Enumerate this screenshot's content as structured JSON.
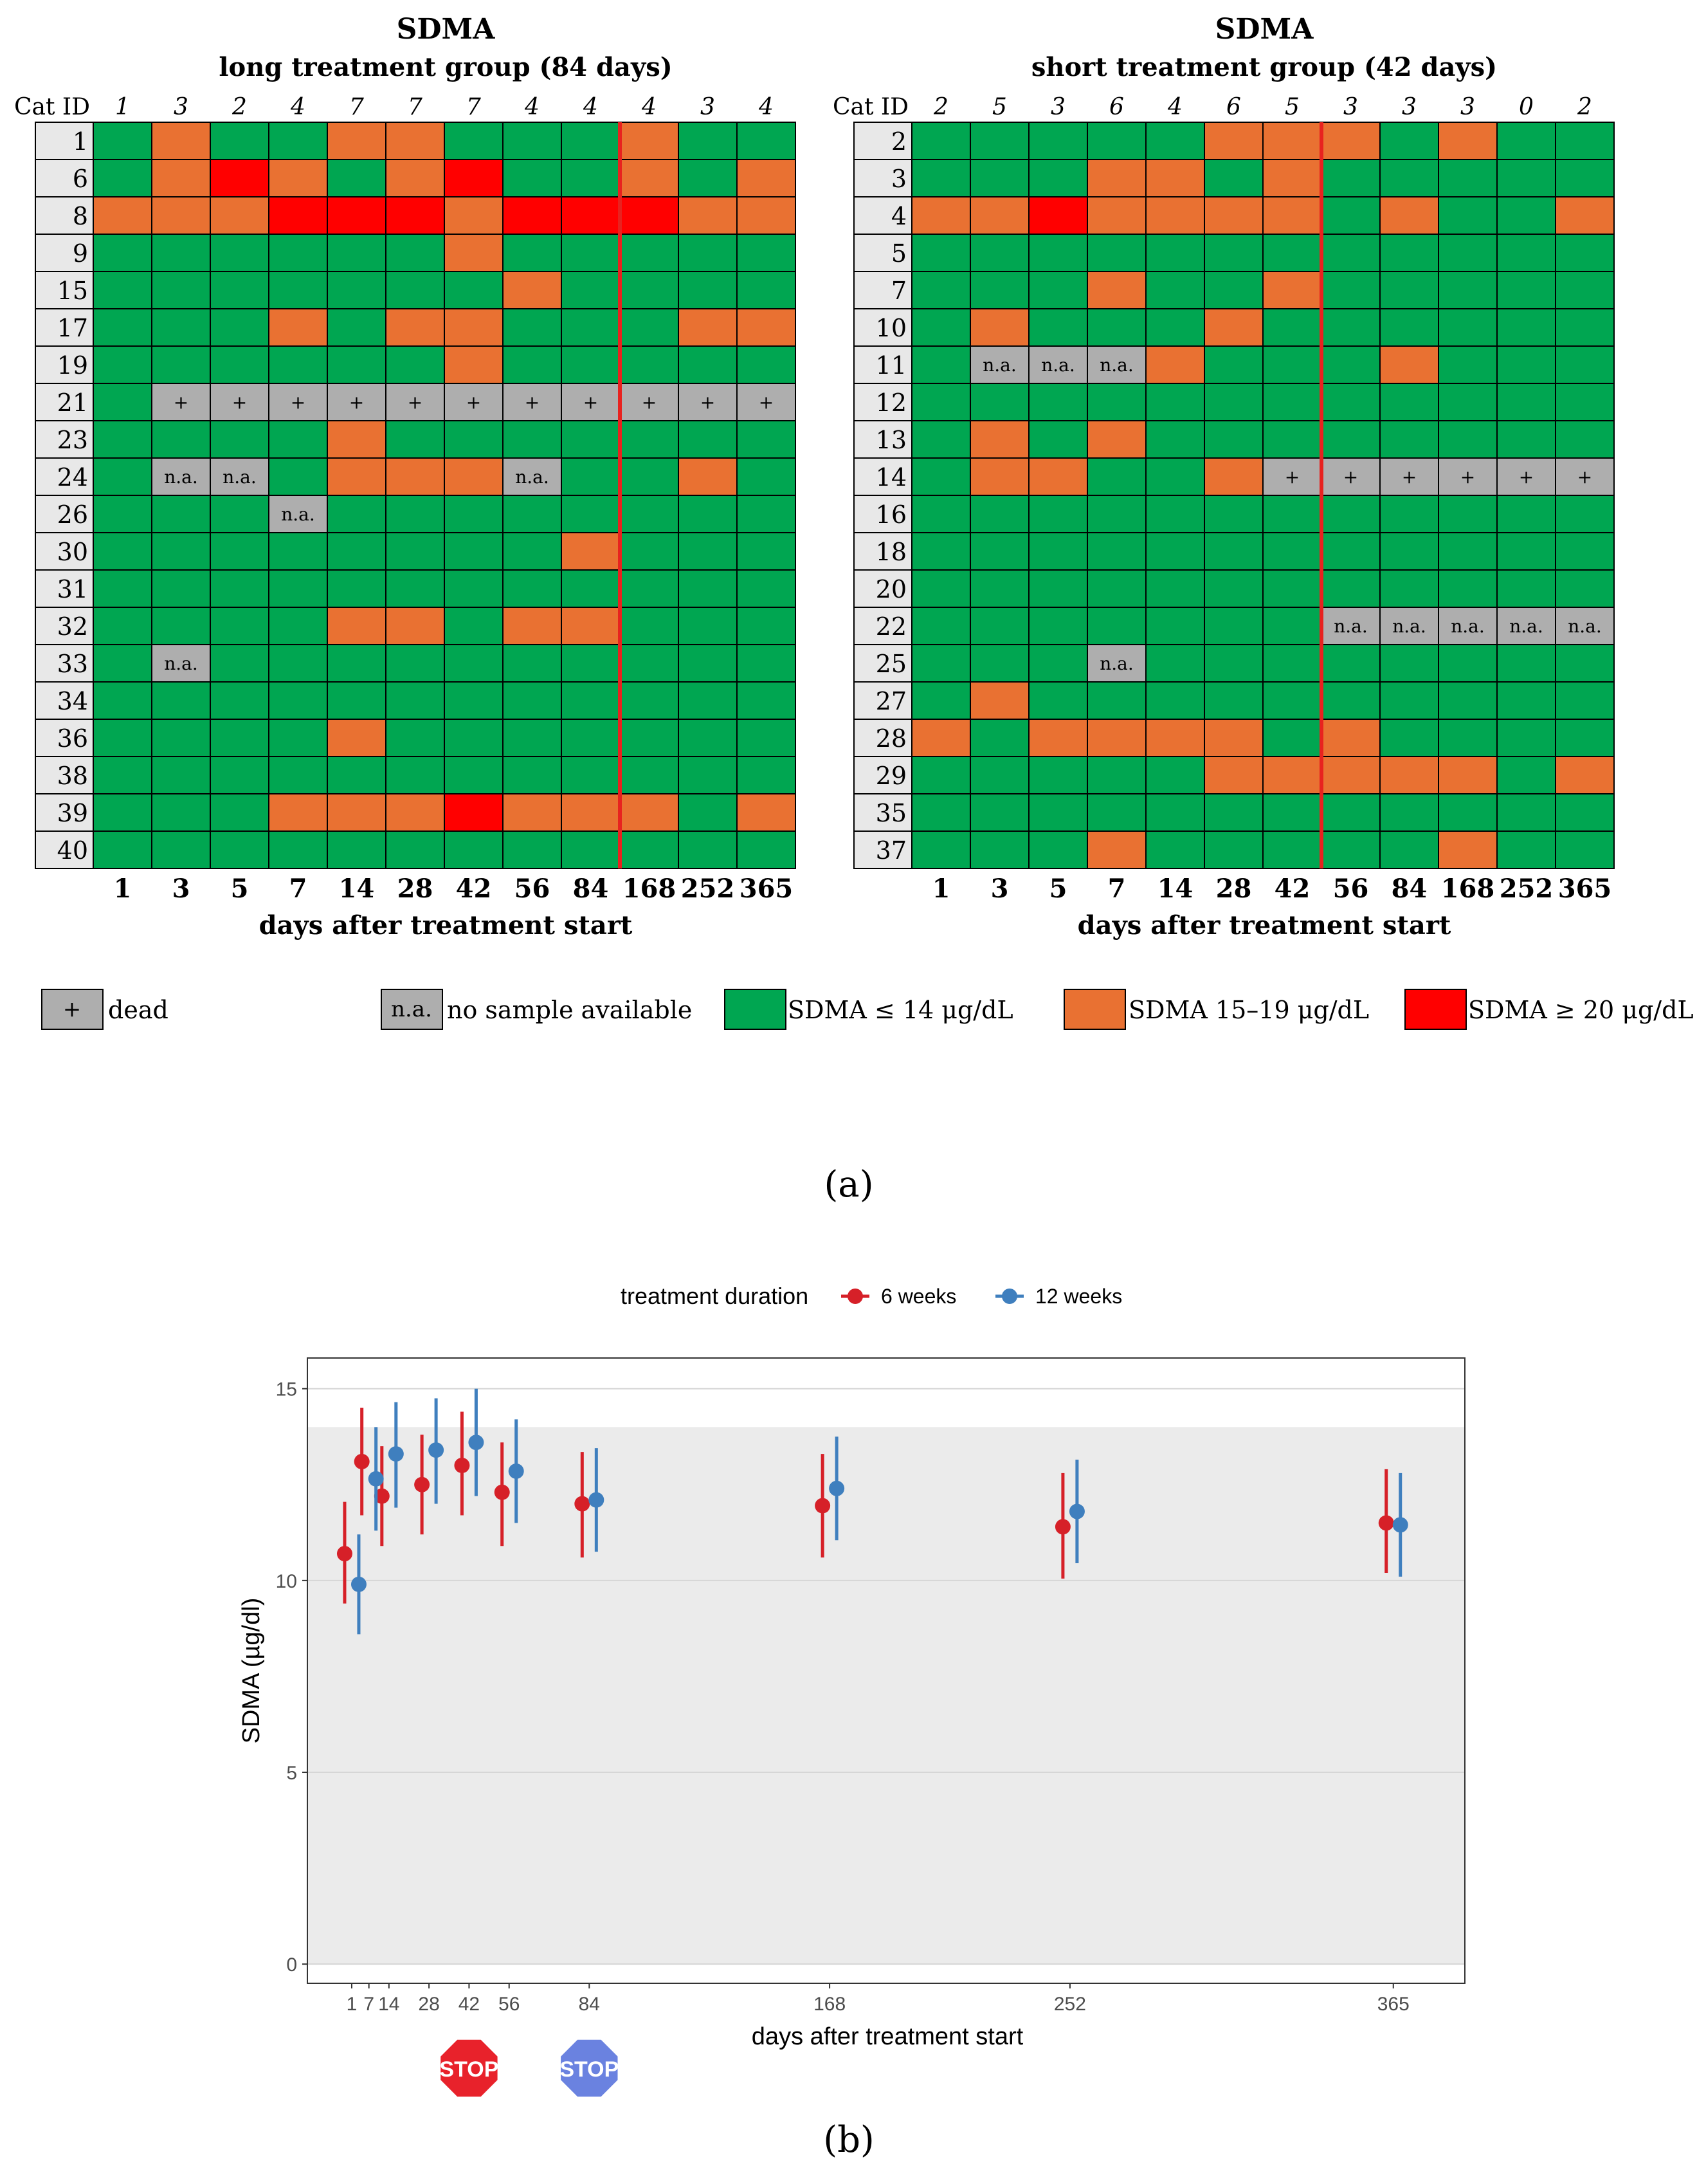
{
  "colors": {
    "green": "#00A651",
    "orange": "#E97132",
    "red": "#FF0000",
    "gray": "#AEAEAE",
    "idgray": "#E8E8E8",
    "redline": "#E8221F",
    "series6": "#D62028",
    "series12": "#3F7FBE",
    "panelbg": "#EBEBEB",
    "stopRed": "#E8222B",
    "stopBlue": "#6A82E0"
  },
  "panel_a": {
    "label": "(a)",
    "x_label": "days after treatment start",
    "cat_id_header": "Cat ID",
    "days": [
      "1",
      "3",
      "5",
      "7",
      "14",
      "28",
      "42",
      "56",
      "84",
      "168",
      "252",
      "365"
    ],
    "legend": [
      {
        "key": "dead",
        "symbol": "+",
        "text": "dead"
      },
      {
        "key": "na",
        "symbol": "n.a.",
        "text": "no sample available"
      },
      {
        "key": "G",
        "symbol": "",
        "text": "SDMA ≤ 14 μg/dL"
      },
      {
        "key": "O",
        "symbol": "",
        "text": "SDMA 15–19 μg/dL"
      },
      {
        "key": "R",
        "symbol": "",
        "text": "SDMA ≥ 20 μg/dL"
      }
    ],
    "groups": [
      {
        "title": "SDMA",
        "subtitle": "long treatment group (84 days)",
        "counts": [
          "1",
          "3",
          "2",
          "4",
          "7",
          "7",
          "7",
          "4",
          "4",
          "4",
          "3",
          "4"
        ],
        "stop_after_index": 8,
        "rows": [
          {
            "id": "1",
            "cells": [
              "G",
              "O",
              "G",
              "G",
              "O",
              "O",
              "G",
              "G",
              "G",
              "O",
              "G",
              "G"
            ]
          },
          {
            "id": "6",
            "cells": [
              "G",
              "O",
              "R",
              "O",
              "G",
              "O",
              "R",
              "G",
              "G",
              "O",
              "G",
              "O"
            ]
          },
          {
            "id": "8",
            "cells": [
              "O",
              "O",
              "O",
              "R",
              "R",
              "R",
              "O",
              "R",
              "R",
              "R",
              "O",
              "O"
            ]
          },
          {
            "id": "9",
            "cells": [
              "G",
              "G",
              "G",
              "G",
              "G",
              "G",
              "O",
              "G",
              "G",
              "G",
              "G",
              "G"
            ]
          },
          {
            "id": "15",
            "cells": [
              "G",
              "G",
              "G",
              "G",
              "G",
              "G",
              "G",
              "O",
              "G",
              "G",
              "G",
              "G"
            ]
          },
          {
            "id": "17",
            "cells": [
              "G",
              "G",
              "G",
              "O",
              "G",
              "O",
              "O",
              "G",
              "G",
              "G",
              "O",
              "O"
            ]
          },
          {
            "id": "19",
            "cells": [
              "G",
              "G",
              "G",
              "G",
              "G",
              "G",
              "O",
              "G",
              "G",
              "G",
              "G",
              "G"
            ]
          },
          {
            "id": "21",
            "cells": [
              "G",
              "+",
              "+",
              "+",
              "+",
              "+",
              "+",
              "+",
              "+",
              "+",
              "+",
              "+"
            ]
          },
          {
            "id": "23",
            "cells": [
              "G",
              "G",
              "G",
              "G",
              "O",
              "G",
              "G",
              "G",
              "G",
              "G",
              "G",
              "G"
            ]
          },
          {
            "id": "24",
            "cells": [
              "G",
              "n.a.",
              "n.a.",
              "G",
              "O",
              "O",
              "O",
              "n.a.",
              "G",
              "G",
              "O",
              "G"
            ]
          },
          {
            "id": "26",
            "cells": [
              "G",
              "G",
              "G",
              "n.a.",
              "G",
              "G",
              "G",
              "G",
              "G",
              "G",
              "G",
              "G"
            ]
          },
          {
            "id": "30",
            "cells": [
              "G",
              "G",
              "G",
              "G",
              "G",
              "G",
              "G",
              "G",
              "O",
              "G",
              "G",
              "G"
            ]
          },
          {
            "id": "31",
            "cells": [
              "G",
              "G",
              "G",
              "G",
              "G",
              "G",
              "G",
              "G",
              "G",
              "G",
              "G",
              "G"
            ]
          },
          {
            "id": "32",
            "cells": [
              "G",
              "G",
              "G",
              "G",
              "O",
              "O",
              "G",
              "O",
              "O",
              "G",
              "G",
              "G"
            ]
          },
          {
            "id": "33",
            "cells": [
              "G",
              "n.a.",
              "G",
              "G",
              "G",
              "G",
              "G",
              "G",
              "G",
              "G",
              "G",
              "G"
            ]
          },
          {
            "id": "34",
            "cells": [
              "G",
              "G",
              "G",
              "G",
              "G",
              "G",
              "G",
              "G",
              "G",
              "G",
              "G",
              "G"
            ]
          },
          {
            "id": "36",
            "cells": [
              "G",
              "G",
              "G",
              "G",
              "O",
              "G",
              "G",
              "G",
              "G",
              "G",
              "G",
              "G"
            ]
          },
          {
            "id": "38",
            "cells": [
              "G",
              "G",
              "G",
              "G",
              "G",
              "G",
              "G",
              "G",
              "G",
              "G",
              "G",
              "G"
            ]
          },
          {
            "id": "39",
            "cells": [
              "G",
              "G",
              "G",
              "O",
              "O",
              "O",
              "R",
              "O",
              "O",
              "O",
              "G",
              "O"
            ]
          },
          {
            "id": "40",
            "cells": [
              "G",
              "G",
              "G",
              "G",
              "G",
              "G",
              "G",
              "G",
              "G",
              "G",
              "G",
              "G"
            ]
          }
        ]
      },
      {
        "title": "SDMA",
        "subtitle": "short treatment group (42 days)",
        "counts": [
          "2",
          "5",
          "3",
          "6",
          "4",
          "6",
          "5",
          "3",
          "3",
          "3",
          "0",
          "2"
        ],
        "stop_after_index": 6,
        "rows": [
          {
            "id": "2",
            "cells": [
              "G",
              "G",
              "G",
              "G",
              "G",
              "O",
              "O",
              "O",
              "G",
              "O",
              "G",
              "G"
            ]
          },
          {
            "id": "3",
            "cells": [
              "G",
              "G",
              "G",
              "O",
              "O",
              "G",
              "O",
              "G",
              "G",
              "G",
              "G",
              "G"
            ]
          },
          {
            "id": "4",
            "cells": [
              "O",
              "O",
              "R",
              "O",
              "O",
              "O",
              "O",
              "G",
              "O",
              "G",
              "G",
              "O"
            ]
          },
          {
            "id": "5",
            "cells": [
              "G",
              "G",
              "G",
              "G",
              "G",
              "G",
              "G",
              "G",
              "G",
              "G",
              "G",
              "G"
            ]
          },
          {
            "id": "7",
            "cells": [
              "G",
              "G",
              "G",
              "O",
              "G",
              "G",
              "O",
              "G",
              "G",
              "G",
              "G",
              "G"
            ]
          },
          {
            "id": "10",
            "cells": [
              "G",
              "O",
              "G",
              "G",
              "G",
              "O",
              "G",
              "G",
              "G",
              "G",
              "G",
              "G"
            ]
          },
          {
            "id": "11",
            "cells": [
              "G",
              "n.a.",
              "n.a.",
              "n.a.",
              "O",
              "G",
              "G",
              "G",
              "O",
              "G",
              "G",
              "G"
            ]
          },
          {
            "id": "12",
            "cells": [
              "G",
              "G",
              "G",
              "G",
              "G",
              "G",
              "G",
              "G",
              "G",
              "G",
              "G",
              "G"
            ]
          },
          {
            "id": "13",
            "cells": [
              "G",
              "O",
              "G",
              "O",
              "G",
              "G",
              "G",
              "G",
              "G",
              "G",
              "G",
              "G"
            ]
          },
          {
            "id": "14",
            "cells": [
              "G",
              "O",
              "O",
              "G",
              "G",
              "O",
              "+",
              "+",
              "+",
              "+",
              "+",
              "+"
            ]
          },
          {
            "id": "16",
            "cells": [
              "G",
              "G",
              "G",
              "G",
              "G",
              "G",
              "G",
              "G",
              "G",
              "G",
              "G",
              "G"
            ]
          },
          {
            "id": "18",
            "cells": [
              "G",
              "G",
              "G",
              "G",
              "G",
              "G",
              "G",
              "G",
              "G",
              "G",
              "G",
              "G"
            ]
          },
          {
            "id": "20",
            "cells": [
              "G",
              "G",
              "G",
              "G",
              "G",
              "G",
              "G",
              "G",
              "G",
              "G",
              "G",
              "G"
            ]
          },
          {
            "id": "22",
            "cells": [
              "G",
              "G",
              "G",
              "G",
              "G",
              "G",
              "G",
              "n.a.",
              "n.a.",
              "n.a.",
              "n.a.",
              "n.a."
            ]
          },
          {
            "id": "25",
            "cells": [
              "G",
              "G",
              "G",
              "n.a.",
              "G",
              "G",
              "G",
              "G",
              "G",
              "G",
              "G",
              "G"
            ]
          },
          {
            "id": "27",
            "cells": [
              "G",
              "O",
              "G",
              "G",
              "G",
              "G",
              "G",
              "G",
              "G",
              "G",
              "G",
              "G"
            ]
          },
          {
            "id": "28",
            "cells": [
              "O",
              "G",
              "O",
              "O",
              "O",
              "O",
              "G",
              "O",
              "G",
              "G",
              "G",
              "G"
            ]
          },
          {
            "id": "29",
            "cells": [
              "G",
              "G",
              "G",
              "G",
              "G",
              "O",
              "O",
              "O",
              "O",
              "O",
              "G",
              "O"
            ]
          },
          {
            "id": "35",
            "cells": [
              "G",
              "G",
              "G",
              "G",
              "G",
              "G",
              "G",
              "G",
              "G",
              "G",
              "G",
              "G"
            ]
          },
          {
            "id": "37",
            "cells": [
              "G",
              "G",
              "G",
              "O",
              "G",
              "G",
              "G",
              "G",
              "G",
              "O",
              "G",
              "G"
            ]
          }
        ]
      }
    ]
  },
  "chart_data": {
    "type": "scatter",
    "label": "(b)",
    "legend_title": "treatment duration",
    "xlabel": "days after treatment start",
    "ylabel": "SDMA (µg/dl)",
    "ylim": [
      -0.5,
      15.8
    ],
    "yticks": [
      0,
      5,
      10,
      15
    ],
    "xticks": [
      1,
      7,
      14,
      28,
      42,
      56,
      84,
      168,
      252,
      365
    ],
    "xtick_labels": [
      "1",
      "7",
      "14",
      "28",
      "42",
      "56",
      "84",
      "168",
      "252",
      "365"
    ],
    "reference_band": [
      0,
      14
    ],
    "stop_markers": [
      {
        "day": 42,
        "text": "STOP",
        "series": "6 weeks"
      },
      {
        "day": 84,
        "text": "STOP",
        "series": "12 weeks"
      }
    ],
    "series": [
      {
        "name": "6 weeks",
        "x": [
          1,
          7,
          14,
          28,
          42,
          56,
          84,
          168,
          252,
          365
        ],
        "mean": [
          10.7,
          13.1,
          12.2,
          12.5,
          13.0,
          12.3,
          12.0,
          11.95,
          11.4,
          11.5
        ],
        "lower": [
          9.4,
          11.7,
          10.9,
          11.2,
          11.7,
          10.9,
          10.6,
          10.6,
          10.05,
          10.2
        ],
        "upper": [
          12.05,
          14.5,
          13.5,
          13.8,
          14.4,
          13.6,
          13.35,
          13.3,
          12.8,
          12.9
        ]
      },
      {
        "name": "12 weeks",
        "x": [
          1,
          7,
          14,
          28,
          42,
          56,
          84,
          168,
          252,
          365
        ],
        "mean": [
          9.9,
          12.65,
          13.3,
          13.4,
          13.6,
          12.85,
          12.1,
          12.4,
          11.8,
          11.45
        ],
        "lower": [
          8.6,
          11.3,
          11.9,
          12.0,
          12.2,
          11.5,
          10.75,
          11.05,
          10.45,
          10.1
        ],
        "upper": [
          11.2,
          14.0,
          14.65,
          14.75,
          15.0,
          14.2,
          13.45,
          13.75,
          13.15,
          12.8
        ]
      }
    ]
  }
}
